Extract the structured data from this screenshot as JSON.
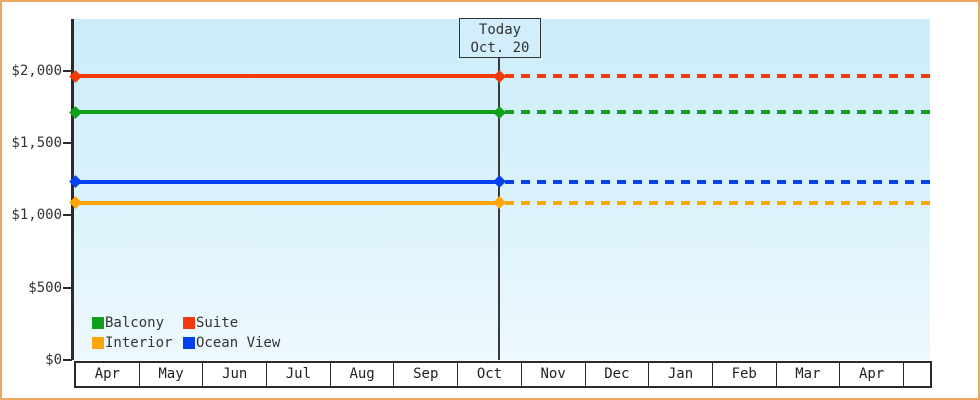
{
  "colors": {
    "frame_border": "#e9a95f",
    "plot_bg_top": "#cdedfa",
    "plot_bg_bottom": "#eef9fe",
    "axis": "#2b2b2b",
    "today_line": "#3a3a3a",
    "today_box_fill": "#d2edfb"
  },
  "chart_data": {
    "type": "line",
    "title": "",
    "x_categories": [
      "Apr",
      "May",
      "Jun",
      "Jul",
      "Aug",
      "Sep",
      "Oct",
      "Nov",
      "Dec",
      "Jan",
      "Feb",
      "Mar",
      "Apr"
    ],
    "y_axis": {
      "tick_values": [
        0,
        500,
        1000,
        1500,
        2000
      ],
      "tick_labels": [
        "$0",
        "$500",
        "$1,000",
        "$1,500",
        "$2,000"
      ],
      "ylim": [
        0,
        2350
      ],
      "grid": false
    },
    "today_marker": {
      "label_line1": "Today",
      "label_line2": "Oct. 20",
      "month": "Oct",
      "day": 20
    },
    "line_style": {
      "before_today": "solid",
      "after_today": "dashed"
    },
    "series": [
      {
        "name": "Suite",
        "color": "#f33a0a",
        "value": 1960
      },
      {
        "name": "Balcony",
        "color": "#10a01a",
        "value": 1710
      },
      {
        "name": "Ocean View",
        "color": "#0440f0",
        "value": 1230
      },
      {
        "name": "Interior",
        "color": "#ffa505",
        "value": 1085
      }
    ],
    "legend": {
      "position": "bottom-left",
      "items": [
        {
          "label": "Balcony",
          "color": "#10a01a"
        },
        {
          "label": "Suite",
          "color": "#f33a0a"
        },
        {
          "label": "Interior",
          "color": "#ffa505"
        },
        {
          "label": "Ocean View",
          "color": "#0440f0"
        }
      ]
    }
  }
}
